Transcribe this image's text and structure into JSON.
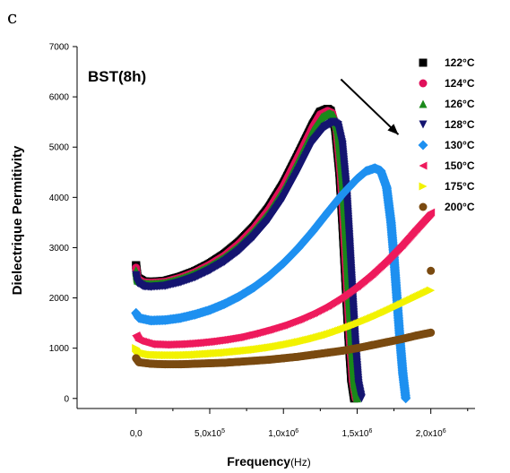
{
  "panel_label": "c",
  "chart_data": {
    "type": "scatter",
    "title": "",
    "inset_label": "BST(8h)",
    "xlabel": "Frequency",
    "xlabel_unit": "(Hz)",
    "ylabel": "Dielectrique Permitivity",
    "xlim": [
      -400000,
      2300000
    ],
    "ylim": [
      -200,
      7000
    ],
    "x_ticks": [
      {
        "value": 0,
        "label": "0,0"
      },
      {
        "value": 500000,
        "label": "5,0x10",
        "exp": "5"
      },
      {
        "value": 1000000,
        "label": "1,0x10",
        "exp": "6"
      },
      {
        "value": 1500000,
        "label": "1,5x10",
        "exp": "6"
      },
      {
        "value": 2000000,
        "label": "2,0x10",
        "exp": "6"
      }
    ],
    "y_ticks": [
      0,
      1000,
      2000,
      3000,
      4000,
      5000,
      6000,
      7000
    ],
    "grid": false,
    "legend_position": "top-right",
    "series": [
      {
        "name": "122°C",
        "color": "#000000",
        "marker": "square",
        "x": [
          0,
          10000,
          50000,
          100000,
          200000,
          300000,
          400000,
          500000,
          600000,
          700000,
          800000,
          900000,
          1000000,
          1100000,
          1200000,
          1250000,
          1300000,
          1320000,
          1350000,
          1380000,
          1400000,
          1420000,
          1440000,
          1460000,
          1480000
        ],
        "y": [
          2650,
          2400,
          2330,
          2320,
          2340,
          2420,
          2530,
          2680,
          2870,
          3110,
          3410,
          3790,
          4270,
          4850,
          5450,
          5700,
          5760,
          5720,
          5400,
          4500,
          3500,
          2400,
          1300,
          400,
          0
        ]
      },
      {
        "name": "124°C",
        "color": "#e0105a",
        "marker": "circle",
        "x": [
          0,
          10000,
          50000,
          100000,
          200000,
          300000,
          400000,
          500000,
          600000,
          700000,
          800000,
          900000,
          1000000,
          1100000,
          1200000,
          1250000,
          1300000,
          1330000,
          1360000,
          1390000,
          1410000,
          1430000,
          1450000,
          1470000,
          1490000
        ],
        "y": [
          2600,
          2380,
          2310,
          2300,
          2320,
          2400,
          2510,
          2660,
          2840,
          3080,
          3380,
          3750,
          4220,
          4800,
          5400,
          5650,
          5720,
          5680,
          5350,
          4400,
          3400,
          2300,
          1200,
          350,
          0
        ]
      },
      {
        "name": "126°C",
        "color": "#1a8a1a",
        "marker": "triangle-up",
        "x": [
          0,
          10000,
          50000,
          100000,
          200000,
          300000,
          400000,
          500000,
          600000,
          700000,
          800000,
          900000,
          1000000,
          1100000,
          1200000,
          1260000,
          1310000,
          1340000,
          1370000,
          1400000,
          1420000,
          1440000,
          1460000,
          1480000,
          1500000
        ],
        "y": [
          2550,
          2350,
          2290,
          2280,
          2300,
          2380,
          2490,
          2630,
          2810,
          3040,
          3340,
          3700,
          4160,
          4740,
          5340,
          5600,
          5680,
          5640,
          5300,
          4350,
          3350,
          2250,
          1150,
          300,
          0
        ]
      },
      {
        "name": "128°C",
        "color": "#141470",
        "marker": "triangle-down",
        "x": [
          0,
          10000,
          50000,
          100000,
          200000,
          300000,
          400000,
          500000,
          600000,
          700000,
          800000,
          900000,
          1000000,
          1100000,
          1200000,
          1280000,
          1340000,
          1370000,
          1400000,
          1430000,
          1450000,
          1470000,
          1490000,
          1510000,
          1530000
        ],
        "y": [
          2450,
          2300,
          2230,
          2220,
          2240,
          2310,
          2410,
          2550,
          2720,
          2940,
          3220,
          3560,
          3990,
          4530,
          5110,
          5400,
          5500,
          5440,
          5050,
          4100,
          3100,
          2050,
          1050,
          280,
          0
        ]
      },
      {
        "name": "130°C",
        "color": "#1e90f0",
        "marker": "diamond",
        "x": [
          0,
          20000,
          100000,
          200000,
          300000,
          400000,
          500000,
          600000,
          700000,
          800000,
          900000,
          1000000,
          1100000,
          1200000,
          1300000,
          1400000,
          1500000,
          1560000,
          1620000,
          1660000,
          1700000,
          1730000,
          1750000,
          1770000,
          1790000,
          1810000,
          1830000
        ],
        "y": [
          1700,
          1600,
          1550,
          1560,
          1600,
          1670,
          1760,
          1880,
          2030,
          2210,
          2430,
          2690,
          2990,
          3330,
          3700,
          4060,
          4370,
          4520,
          4580,
          4530,
          4200,
          3500,
          2800,
          2000,
          1200,
          500,
          0
        ]
      },
      {
        "name": "150°C",
        "color": "#ee1a5c",
        "marker": "triangle-left",
        "x": [
          0,
          20000,
          100000,
          200000,
          300000,
          400000,
          500000,
          600000,
          700000,
          800000,
          900000,
          1000000,
          1100000,
          1200000,
          1300000,
          1400000,
          1500000,
          1600000,
          1700000,
          1800000,
          1900000,
          2000000
        ],
        "y": [
          1250,
          1150,
          1080,
          1070,
          1080,
          1100,
          1130,
          1170,
          1220,
          1290,
          1370,
          1460,
          1570,
          1700,
          1850,
          2030,
          2240,
          2480,
          2750,
          3050,
          3380,
          3700
        ]
      },
      {
        "name": "175°C",
        "color": "#f2f200",
        "marker": "triangle-right",
        "x": [
          0,
          20000,
          100000,
          200000,
          300000,
          400000,
          500000,
          600000,
          700000,
          800000,
          900000,
          1000000,
          1100000,
          1200000,
          1300000,
          1400000,
          1500000,
          1600000,
          1700000,
          1800000,
          1900000,
          2000000
        ],
        "y": [
          1000,
          920,
          870,
          860,
          860,
          870,
          890,
          910,
          940,
          970,
          1010,
          1060,
          1120,
          1190,
          1270,
          1370,
          1480,
          1600,
          1730,
          1870,
          2010,
          2150
        ]
      },
      {
        "name": "200°C",
        "color": "#7a4a10",
        "marker": "circle",
        "x": [
          0,
          20000,
          100000,
          200000,
          300000,
          400000,
          500000,
          600000,
          700000,
          800000,
          900000,
          1000000,
          1100000,
          1200000,
          1300000,
          1400000,
          1500000,
          1600000,
          1700000,
          1800000,
          1900000,
          2000000
        ],
        "y": [
          800,
          720,
          690,
          680,
          680,
          690,
          700,
          710,
          730,
          750,
          770,
          800,
          830,
          870,
          910,
          950,
          1000,
          1060,
          1120,
          1180,
          1250,
          1310
        ]
      }
    ],
    "annotations": [
      {
        "type": "arrow",
        "text": "",
        "from": [
          1390000,
          6350
        ],
        "to": [
          1780000,
          5250
        ]
      },
      {
        "type": "point",
        "text": "",
        "series": "200°C",
        "x": 2000000,
        "y": 2540
      }
    ]
  }
}
